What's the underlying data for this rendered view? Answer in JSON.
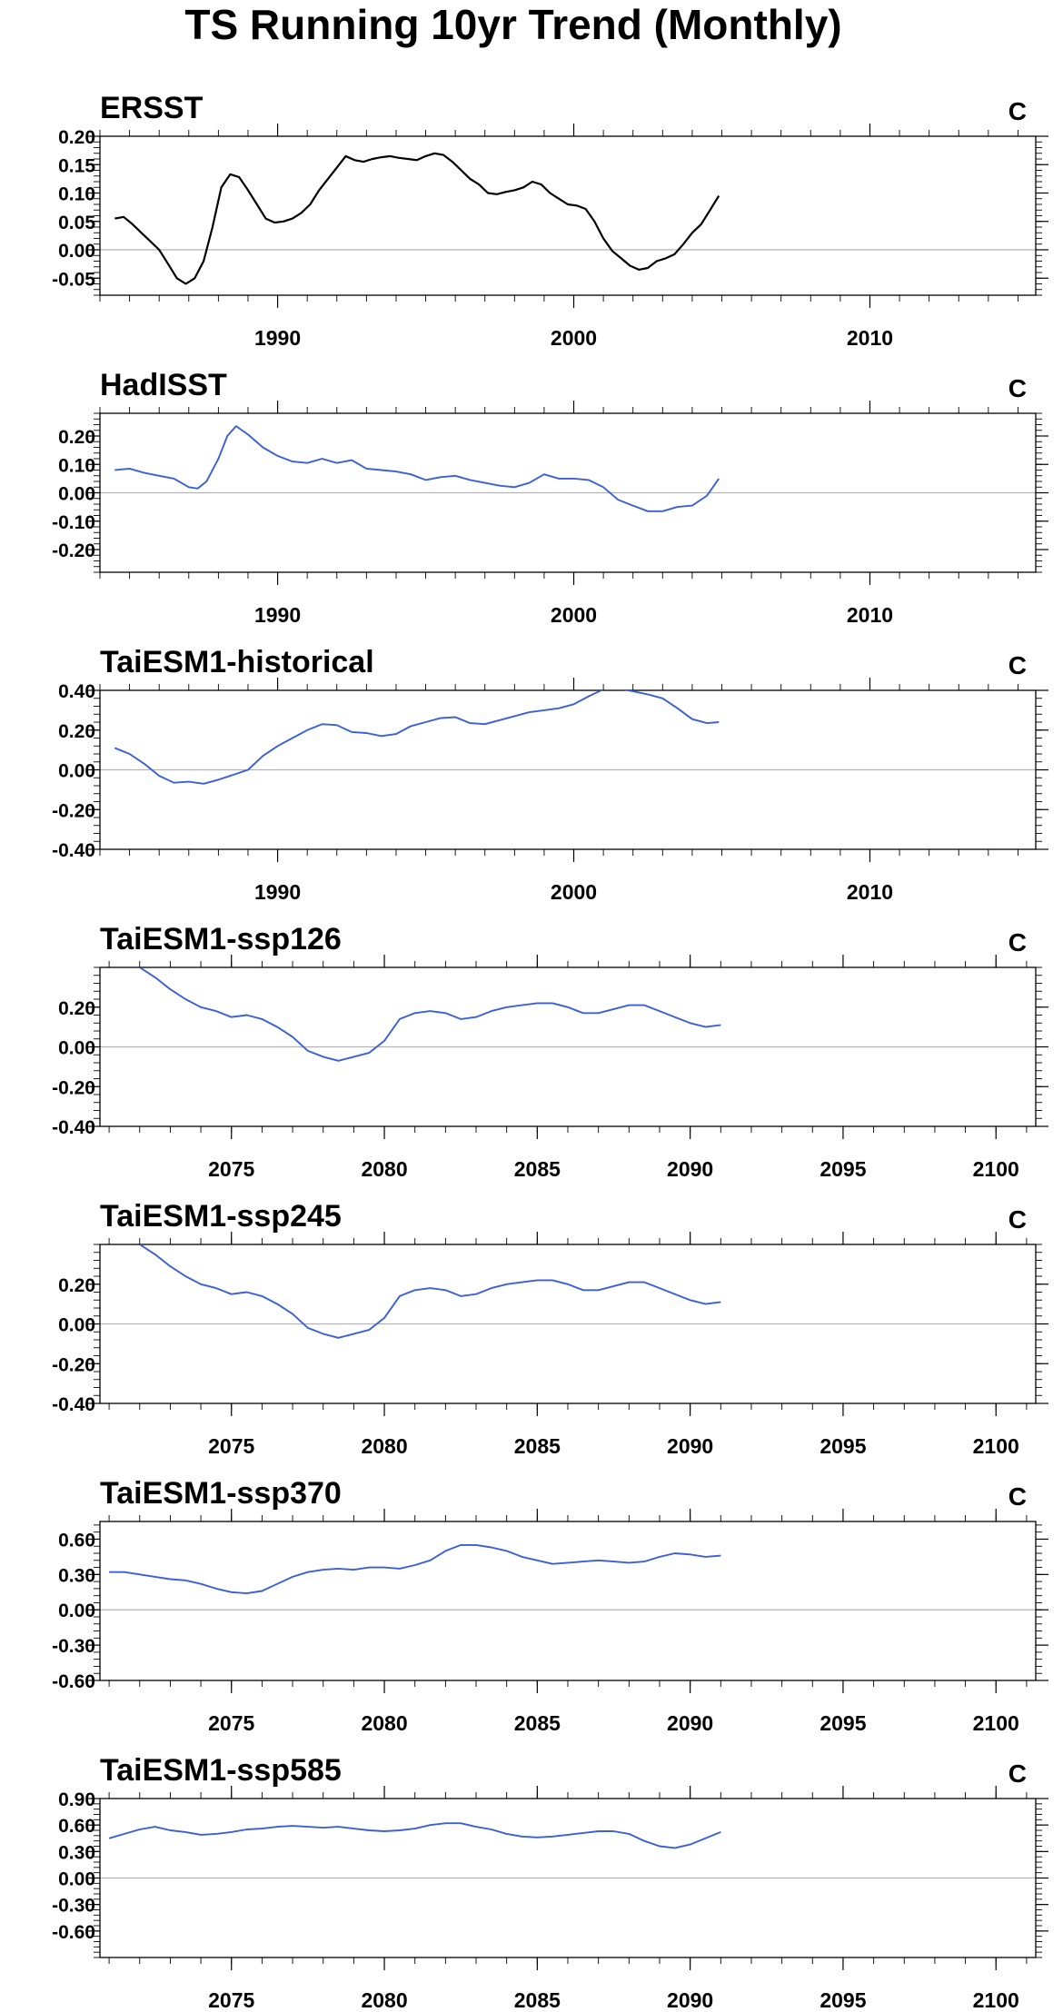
{
  "title": "TS Running 10yr Trend (Monthly)",
  "colors": {
    "obs": "#000000",
    "model": "#3a5fd9",
    "zero": "#b3b3b3"
  },
  "chart_data": [
    {
      "type": "line",
      "title": "ERSST",
      "units": "C",
      "xlim": [
        1984,
        2015.6
      ],
      "ylim": [
        -0.08,
        0.2
      ],
      "yticks": [
        -0.05,
        0.0,
        0.05,
        0.1,
        0.15,
        0.2
      ],
      "ytick_labels": [
        "-0.05",
        "0.00",
        "0.05",
        "0.10",
        "0.15",
        "0.20"
      ],
      "xticks": [
        1990,
        2000,
        2010
      ],
      "xtick_labels": [
        "1990",
        "2000",
        "2010"
      ],
      "color": "obs",
      "series": [
        {
          "x": [
            1984.5,
            1984.8,
            1985.1,
            1985.4,
            1985.7,
            1986.0,
            1986.3,
            1986.6,
            1986.9,
            1987.2,
            1987.5,
            1987.8,
            1988.1,
            1988.4,
            1988.7,
            1989.0,
            1989.3,
            1989.6,
            1989.9,
            1990.2,
            1990.5,
            1990.8,
            1991.1,
            1991.4,
            1991.7,
            1992.0,
            1992.3,
            1992.6,
            1992.9,
            1993.2,
            1993.5,
            1993.8,
            1994.1,
            1994.4,
            1994.7,
            1995.0,
            1995.3,
            1995.6,
            1995.9,
            1996.2,
            1996.5,
            1996.8,
            1997.1,
            1997.4,
            1997.7,
            1998.0,
            1998.3,
            1998.6,
            1998.9,
            1999.2,
            1999.5,
            1999.8,
            2000.1,
            2000.4,
            2000.7,
            2001.0,
            2001.3,
            2001.6,
            2001.9,
            2002.2,
            2002.5,
            2002.8,
            2003.1,
            2003.4,
            2003.7,
            2004.0,
            2004.3,
            2004.6,
            2004.9
          ],
          "y": [
            0.055,
            0.058,
            0.045,
            0.03,
            0.015,
            0.0,
            -0.025,
            -0.05,
            -0.06,
            -0.05,
            -0.02,
            0.04,
            0.11,
            0.133,
            0.128,
            0.105,
            0.08,
            0.055,
            0.048,
            0.05,
            0.055,
            0.065,
            0.08,
            0.105,
            0.125,
            0.145,
            0.165,
            0.158,
            0.155,
            0.16,
            0.163,
            0.165,
            0.162,
            0.16,
            0.158,
            0.165,
            0.17,
            0.167,
            0.155,
            0.14,
            0.125,
            0.115,
            0.1,
            0.098,
            0.102,
            0.105,
            0.11,
            0.12,
            0.115,
            0.1,
            0.09,
            0.08,
            0.078,
            0.072,
            0.05,
            0.02,
            -0.002,
            -0.015,
            -0.028,
            -0.035,
            -0.032,
            -0.02,
            -0.015,
            -0.008,
            0.01,
            0.03,
            0.045,
            0.07,
            0.095
          ]
        }
      ]
    },
    {
      "type": "line",
      "title": "HadISST",
      "units": "C",
      "xlim": [
        1984,
        2015.6
      ],
      "ylim": [
        -0.28,
        0.28
      ],
      "yticks": [
        -0.2,
        -0.1,
        0.0,
        0.1,
        0.2
      ],
      "ytick_labels": [
        "-0.20",
        "-0.10",
        "0.00",
        "0.10",
        "0.20"
      ],
      "xticks": [
        1990,
        2000,
        2010
      ],
      "xtick_labels": [
        "1990",
        "2000",
        "2010"
      ],
      "color": "model",
      "series": [
        {
          "x": [
            1984.5,
            1985.0,
            1985.5,
            1986.0,
            1986.5,
            1987.0,
            1987.3,
            1987.6,
            1988.0,
            1988.3,
            1988.6,
            1989.0,
            1989.5,
            1990.0,
            1990.5,
            1991.0,
            1991.5,
            1992.0,
            1992.5,
            1993.0,
            1993.5,
            1994.0,
            1994.5,
            1995.0,
            1995.5,
            1996.0,
            1996.5,
            1997.0,
            1997.5,
            1998.0,
            1998.5,
            1999.0,
            1999.5,
            2000.0,
            2000.5,
            2001.0,
            2001.5,
            2002.0,
            2002.5,
            2003.0,
            2003.5,
            2004.0,
            2004.5,
            2004.9
          ],
          "y": [
            0.08,
            0.085,
            0.07,
            0.06,
            0.05,
            0.02,
            0.015,
            0.04,
            0.12,
            0.2,
            0.235,
            0.205,
            0.16,
            0.13,
            0.11,
            0.105,
            0.12,
            0.105,
            0.115,
            0.085,
            0.08,
            0.075,
            0.065,
            0.045,
            0.055,
            0.06,
            0.045,
            0.035,
            0.025,
            0.02,
            0.035,
            0.065,
            0.05,
            0.05,
            0.045,
            0.02,
            -0.025,
            -0.045,
            -0.065,
            -0.065,
            -0.05,
            -0.045,
            -0.01,
            0.05
          ]
        }
      ]
    },
    {
      "type": "line",
      "title": "TaiESM1-historical",
      "units": "C",
      "xlim": [
        1984,
        2015.6
      ],
      "ylim": [
        -0.4,
        0.4
      ],
      "yticks": [
        -0.4,
        -0.2,
        0.0,
        0.2,
        0.4
      ],
      "ytick_labels": [
        "-0.40",
        "-0.20",
        "0.00",
        "0.20",
        "0.40"
      ],
      "xticks": [
        1990,
        2000,
        2010
      ],
      "xtick_labels": [
        "1990",
        "2000",
        "2010"
      ],
      "color": "model",
      "series": [
        {
          "x": [
            1984.5,
            1985.0,
            1985.5,
            1986.0,
            1986.5,
            1987.0,
            1987.5,
            1988.0,
            1988.5,
            1989.0,
            1989.5,
            1990.0,
            1990.5,
            1991.0,
            1991.5,
            1992.0,
            1992.5,
            1993.0,
            1993.5,
            1994.0,
            1994.5,
            1995.0,
            1995.5,
            1996.0,
            1996.5,
            1997.0,
            1997.5,
            1998.0,
            1998.5,
            1999.0,
            1999.5,
            2000.0,
            2000.5,
            2001.0,
            2001.5,
            2002.0,
            2002.5,
            2003.0,
            2003.5,
            2004.0,
            2004.5,
            2004.9
          ],
          "y": [
            0.11,
            0.08,
            0.03,
            -0.03,
            -0.065,
            -0.06,
            -0.07,
            -0.05,
            -0.025,
            0.0,
            0.07,
            0.12,
            0.16,
            0.2,
            0.23,
            0.225,
            0.19,
            0.185,
            0.17,
            0.18,
            0.22,
            0.24,
            0.26,
            0.265,
            0.235,
            0.23,
            0.25,
            0.27,
            0.29,
            0.3,
            0.31,
            0.33,
            0.37,
            0.405,
            0.41,
            0.395,
            0.38,
            0.36,
            0.31,
            0.255,
            0.235,
            0.24
          ]
        }
      ]
    },
    {
      "type": "line",
      "title": "TaiESM1-ssp126",
      "units": "C",
      "xlim": [
        2070.7,
        2101.3
      ],
      "ylim": [
        -0.4,
        0.4
      ],
      "yticks": [
        -0.4,
        -0.2,
        0.0,
        0.2
      ],
      "ytick_labels": [
        "-0.40",
        "-0.20",
        "0.00",
        "0.20"
      ],
      "xticks": [
        2075,
        2080,
        2085,
        2090,
        2095,
        2100
      ],
      "xtick_labels": [
        "2075",
        "2080",
        "2085",
        "2090",
        "2095",
        "2100"
      ],
      "color": "model",
      "series": [
        {
          "x": [
            2072.0,
            2072.5,
            2073.0,
            2073.5,
            2074.0,
            2074.5,
            2075.0,
            2075.5,
            2076.0,
            2076.5,
            2077.0,
            2077.5,
            2078.0,
            2078.5,
            2079.0,
            2079.5,
            2080.0,
            2080.5,
            2081.0,
            2081.5,
            2082.0,
            2082.5,
            2083.0,
            2083.5,
            2084.0,
            2084.5,
            2085.0,
            2085.5,
            2086.0,
            2086.5,
            2087.0,
            2087.5,
            2088.0,
            2088.5,
            2089.0,
            2089.5,
            2090.0,
            2090.5,
            2091.0
          ],
          "y": [
            0.4,
            0.35,
            0.29,
            0.24,
            0.2,
            0.18,
            0.15,
            0.16,
            0.14,
            0.1,
            0.05,
            -0.02,
            -0.05,
            -0.07,
            -0.05,
            -0.03,
            0.03,
            0.14,
            0.17,
            0.18,
            0.17,
            0.14,
            0.15,
            0.18,
            0.2,
            0.21,
            0.22,
            0.22,
            0.2,
            0.17,
            0.17,
            0.19,
            0.21,
            0.21,
            0.18,
            0.15,
            0.12,
            0.1,
            0.11
          ]
        }
      ]
    },
    {
      "type": "line",
      "title": "TaiESM1-ssp245",
      "units": "C",
      "xlim": [
        2070.7,
        2101.3
      ],
      "ylim": [
        -0.4,
        0.4
      ],
      "yticks": [
        -0.4,
        -0.2,
        0.0,
        0.2
      ],
      "ytick_labels": [
        "-0.40",
        "-0.20",
        "0.00",
        "0.20"
      ],
      "xticks": [
        2075,
        2080,
        2085,
        2090,
        2095,
        2100
      ],
      "xtick_labels": [
        "2075",
        "2080",
        "2085",
        "2090",
        "2095",
        "2100"
      ],
      "color": "model",
      "series": [
        {
          "x": [
            2072.0,
            2072.5,
            2073.0,
            2073.5,
            2074.0,
            2074.5,
            2075.0,
            2075.5,
            2076.0,
            2076.5,
            2077.0,
            2077.5,
            2078.0,
            2078.5,
            2079.0,
            2079.5,
            2080.0,
            2080.5,
            2081.0,
            2081.5,
            2082.0,
            2082.5,
            2083.0,
            2083.5,
            2084.0,
            2084.5,
            2085.0,
            2085.5,
            2086.0,
            2086.5,
            2087.0,
            2087.5,
            2088.0,
            2088.5,
            2089.0,
            2089.5,
            2090.0,
            2090.5,
            2091.0
          ],
          "y": [
            0.4,
            0.35,
            0.29,
            0.24,
            0.2,
            0.18,
            0.15,
            0.16,
            0.14,
            0.1,
            0.05,
            -0.02,
            -0.05,
            -0.07,
            -0.05,
            -0.03,
            0.03,
            0.14,
            0.17,
            0.18,
            0.17,
            0.14,
            0.15,
            0.18,
            0.2,
            0.21,
            0.22,
            0.22,
            0.2,
            0.17,
            0.17,
            0.19,
            0.21,
            0.21,
            0.18,
            0.15,
            0.12,
            0.1,
            0.11
          ]
        }
      ]
    },
    {
      "type": "line",
      "title": "TaiESM1-ssp370",
      "units": "C",
      "xlim": [
        2070.7,
        2101.3
      ],
      "ylim": [
        -0.6,
        0.75
      ],
      "yticks": [
        -0.6,
        -0.3,
        0.0,
        0.3,
        0.6
      ],
      "ytick_labels": [
        "-0.60",
        "-0.30",
        "0.00",
        "0.30",
        "0.60"
      ],
      "xticks": [
        2075,
        2080,
        2085,
        2090,
        2095,
        2100
      ],
      "xtick_labels": [
        "2075",
        "2080",
        "2085",
        "2090",
        "2095",
        "2100"
      ],
      "color": "model",
      "series": [
        {
          "x": [
            2071.0,
            2071.5,
            2072.0,
            2072.5,
            2073.0,
            2073.5,
            2074.0,
            2074.5,
            2075.0,
            2075.5,
            2076.0,
            2076.5,
            2077.0,
            2077.5,
            2078.0,
            2078.5,
            2079.0,
            2079.5,
            2080.0,
            2080.5,
            2081.0,
            2081.5,
            2082.0,
            2082.5,
            2083.0,
            2083.5,
            2084.0,
            2084.5,
            2085.0,
            2085.5,
            2086.0,
            2086.5,
            2087.0,
            2087.5,
            2088.0,
            2088.5,
            2089.0,
            2089.5,
            2090.0,
            2090.5,
            2091.0
          ],
          "y": [
            0.32,
            0.32,
            0.3,
            0.28,
            0.26,
            0.25,
            0.22,
            0.18,
            0.15,
            0.14,
            0.16,
            0.22,
            0.28,
            0.32,
            0.34,
            0.35,
            0.34,
            0.36,
            0.36,
            0.35,
            0.38,
            0.42,
            0.5,
            0.55,
            0.55,
            0.53,
            0.5,
            0.45,
            0.42,
            0.39,
            0.4,
            0.41,
            0.42,
            0.41,
            0.4,
            0.41,
            0.45,
            0.48,
            0.47,
            0.45,
            0.46
          ]
        }
      ]
    },
    {
      "type": "line",
      "title": "TaiESM1-ssp585",
      "units": "C",
      "xlim": [
        2070.7,
        2101.3
      ],
      "ylim": [
        -0.9,
        0.9
      ],
      "yticks": [
        -0.6,
        -0.3,
        0.0,
        0.3,
        0.6,
        0.9
      ],
      "ytick_labels": [
        "-0.60",
        "-0.30",
        "0.00",
        "0.30",
        "0.60",
        "0.90"
      ],
      "xticks": [
        2075,
        2080,
        2085,
        2090,
        2095,
        2100
      ],
      "xtick_labels": [
        "2075",
        "2080",
        "2085",
        "2090",
        "2095",
        "2100"
      ],
      "color": "model",
      "series": [
        {
          "x": [
            2071.0,
            2071.5,
            2072.0,
            2072.5,
            2073.0,
            2073.5,
            2074.0,
            2074.5,
            2075.0,
            2075.5,
            2076.0,
            2076.5,
            2077.0,
            2077.5,
            2078.0,
            2078.5,
            2079.0,
            2079.5,
            2080.0,
            2080.5,
            2081.0,
            2081.5,
            2082.0,
            2082.5,
            2083.0,
            2083.5,
            2084.0,
            2084.5,
            2085.0,
            2085.5,
            2086.0,
            2086.5,
            2087.0,
            2087.5,
            2088.0,
            2088.5,
            2089.0,
            2089.5,
            2090.0,
            2090.5,
            2091.0
          ],
          "y": [
            0.45,
            0.5,
            0.55,
            0.58,
            0.54,
            0.52,
            0.49,
            0.5,
            0.52,
            0.55,
            0.56,
            0.58,
            0.59,
            0.58,
            0.57,
            0.58,
            0.56,
            0.54,
            0.53,
            0.54,
            0.56,
            0.6,
            0.62,
            0.62,
            0.58,
            0.55,
            0.5,
            0.47,
            0.46,
            0.47,
            0.49,
            0.51,
            0.53,
            0.53,
            0.5,
            0.42,
            0.36,
            0.34,
            0.38,
            0.45,
            0.52
          ]
        }
      ]
    }
  ]
}
